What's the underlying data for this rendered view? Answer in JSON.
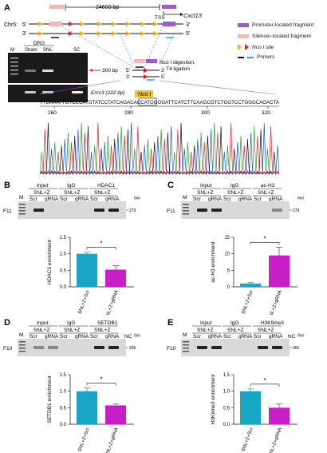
{
  "panel_a": {
    "letter": "A",
    "distance": "24600 bp",
    "gene": "Cxcl13",
    "tss": "TSS",
    "chr": "Chr5:",
    "five": "5'",
    "three": "3'",
    "gel_tissue": "DRG",
    "lanes": [
      "M",
      "Sham",
      "SNL",
      "SC"
    ],
    "band_300": "300 bp",
    "ercc3": "Ercc3 (222 bp)",
    "digestion_line1": "Nco I digestion,",
    "digestion_line2": "T4 ligation",
    "legend": {
      "promoter": "Promoter-located fragment",
      "silencer": "Silencer-located fragment",
      "nco": "Nco I site",
      "primers": "Primers"
    },
    "nco_box": "Nco I",
    "sequence": "TTGAAATTGTCCCATGTATCCTATCAGACACCATGGGGATTCATCTTCAAGCGTCTGGTCCTGGGCAGACTA",
    "positions": [
      "260",
      "280",
      "300",
      "320"
    ]
  },
  "colors": {
    "bar_cyan": "#17a6c4",
    "bar_magenta": "#c81ec8",
    "promoter": "#9b59d6",
    "silencer": "#f4b6b6",
    "primer_blue": "#2aa9e0",
    "red": "#d8232a"
  },
  "panels": {
    "b": {
      "letter": "B",
      "groups": [
        "Input",
        "IgG",
        "HDAC1"
      ],
      "cond": "SNL+Z",
      "lanes": [
        "Scr",
        "gRNA"
      ],
      "row": "F11",
      "marker": "M",
      "size": "279",
      "bp": "(bp)",
      "nc": "",
      "ylabel": "HDAC1 enrichment",
      "sig": "*"
    },
    "c": {
      "letter": "C",
      "groups": [
        "Input",
        "IgG",
        "ac-H3"
      ],
      "cond": "SNL+Z",
      "lanes": [
        "Scr",
        "gRNA"
      ],
      "row": "F11",
      "marker": "M",
      "size": "279",
      "bp": "(bp)",
      "nc": "",
      "ylabel": "ac-H3 enrichment",
      "sig": "*"
    },
    "d": {
      "letter": "D",
      "groups": [
        "Input",
        "IgG",
        "SETDB1"
      ],
      "cond": "SNL+Z",
      "lanes": [
        "Scr",
        "gRNA"
      ],
      "row": "F10",
      "marker": "M",
      "size": "266",
      "bp": "(bp)",
      "nc": "NC",
      "ylabel": "SETDB1 enrichment",
      "sig": "*"
    },
    "e": {
      "letter": "E",
      "groups": [
        "Input",
        "IgG",
        "H3K9me3"
      ],
      "cond": "SNL+Z",
      "lanes": [
        "Scr",
        "gRNA"
      ],
      "row": "F10",
      "marker": "M",
      "size": "266",
      "bp": "(bp)",
      "nc": "NC",
      "ylabel": "H3K9me3 enrichment",
      "sig": "*"
    }
  },
  "xticks": [
    "SNL+Z+Scr",
    "SNL+Z+gRNA"
  ],
  "chart_data": [
    {
      "panel": "B",
      "type": "bar",
      "categories": [
        "SNL+Z+Scr",
        "SNL+Z+gRNA"
      ],
      "values": [
        1.0,
        0.52
      ],
      "errors": [
        0.05,
        0.12
      ],
      "ylabel": "HDAC1 enrichment",
      "ylim": [
        0,
        1.5
      ],
      "yticks": [
        "0.0",
        "0.5",
        "1.0",
        "1.5"
      ]
    },
    {
      "panel": "C",
      "type": "bar",
      "categories": [
        "SNL+Z+Scr",
        "SNL+Z+gRNA"
      ],
      "values": [
        1.0,
        9.5
      ],
      "errors": [
        0.3,
        2.5
      ],
      "ylabel": "ac-H3 enrichment",
      "ylim": [
        0,
        15
      ],
      "yticks": [
        "0",
        "5",
        "10",
        "15"
      ]
    },
    {
      "panel": "D",
      "type": "bar",
      "categories": [
        "SNL+Z+Scr",
        "SNL+Z+gRNA"
      ],
      "values": [
        1.0,
        0.57
      ],
      "errors": [
        0.1,
        0.04
      ],
      "ylabel": "SETDB1 enrichment",
      "ylim": [
        0,
        1.5
      ],
      "yticks": [
        "0.0",
        "0.5",
        "1.0",
        "1.5"
      ]
    },
    {
      "panel": "E",
      "type": "bar",
      "categories": [
        "SNL+Z+Scr",
        "SNL+Z+gRNA"
      ],
      "values": [
        1.0,
        0.5
      ],
      "errors": [
        0.07,
        0.12
      ],
      "ylabel": "H3K9me3 enrichment",
      "ylim": [
        0,
        1.5
      ],
      "yticks": [
        "0.0",
        "0.5",
        "1.0",
        "1.5"
      ]
    }
  ]
}
